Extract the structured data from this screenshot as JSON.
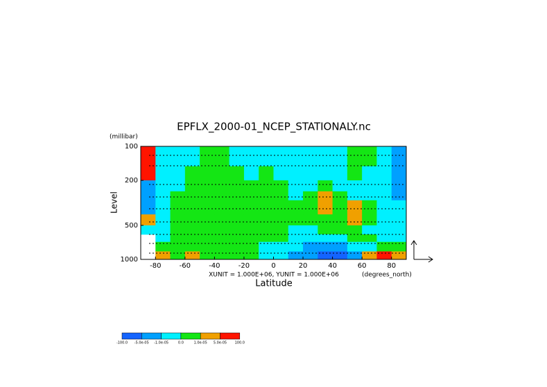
{
  "chart_data": {
    "type": "contour",
    "title": "EPFLX_2000-01_NCEP_STATIONALY.nc",
    "xlabel": "Latitude",
    "ylabel": "Level",
    "x_unit": "(degrees_north)",
    "y_unit": "(millibar)",
    "annotation": "XUNIT = 1.000E+06, YUNIT = 1.000E+06",
    "x": [
      -90,
      -80,
      -70,
      -60,
      -50,
      -40,
      -30,
      -20,
      -10,
      0,
      10,
      20,
      30,
      40,
      50,
      60,
      70,
      80,
      90
    ],
    "y": [
      100,
      150,
      200,
      250,
      300,
      400,
      500,
      600,
      700,
      850,
      1000
    ],
    "z": [
      [
        5,
        2,
        2,
        2,
        3,
        3,
        2,
        2,
        2,
        2,
        2,
        2,
        2,
        2,
        3,
        3,
        2,
        1
      ],
      [
        5,
        2,
        2,
        3,
        3,
        3,
        3,
        2,
        3,
        2,
        2,
        2,
        2,
        2,
        3,
        2,
        2,
        1
      ],
      [
        1,
        2,
        2,
        3,
        3,
        3,
        3,
        3,
        3,
        3,
        2,
        2,
        3,
        2,
        2,
        2,
        2,
        1
      ],
      [
        1,
        2,
        3,
        3,
        3,
        3,
        3,
        3,
        3,
        3,
        2,
        3,
        4,
        3,
        2,
        2,
        2,
        1
      ],
      [
        1,
        2,
        3,
        3,
        3,
        3,
        3,
        3,
        3,
        3,
        3,
        3,
        4,
        3,
        4,
        3,
        2,
        2
      ],
      [
        4,
        2,
        3,
        3,
        3,
        3,
        3,
        3,
        3,
        3,
        3,
        3,
        3,
        3,
        4,
        3,
        2,
        2
      ],
      [
        2,
        2,
        3,
        3,
        3,
        3,
        3,
        3,
        3,
        3,
        2,
        2,
        3,
        3,
        3,
        2,
        2,
        2
      ],
      [
        null,
        2,
        3,
        3,
        3,
        3,
        3,
        3,
        3,
        3,
        2,
        2,
        2,
        2,
        3,
        3,
        2,
        2
      ],
      [
        null,
        3,
        3,
        3,
        3,
        3,
        3,
        3,
        2,
        2,
        2,
        1,
        1,
        1,
        2,
        2,
        3,
        3
      ],
      [
        null,
        4,
        3,
        4,
        3,
        3,
        3,
        3,
        2,
        2,
        1,
        1,
        0,
        0,
        1,
        4,
        5,
        4
      ]
    ],
    "xlim": [
      -90,
      90
    ],
    "xticks": [
      -80,
      -60,
      -40,
      -20,
      0,
      20,
      40,
      60,
      80
    ],
    "ylim": [
      100,
      1000
    ],
    "yticks": [
      100,
      200,
      500,
      1000
    ],
    "y_scale": "log",
    "y_inverted": true,
    "colorbar": {
      "colors": [
        "#1464ff",
        "#00a0ff",
        "#00f0ff",
        "#14e614",
        "#f0a000",
        "#ff1400"
      ],
      "levels": [
        {
          "value": -100,
          "label": "-100.0"
        },
        {
          "value": -5e-05,
          "label": "-5.0e-05"
        },
        {
          "value": -1e-05,
          "label": "-1.0e-05"
        },
        {
          "value": 0,
          "label": "0.0"
        },
        {
          "value": 1e-05,
          "label": "1.0e-05"
        },
        {
          "value": 5e-05,
          "label": "5.0e-05"
        },
        {
          "value": 100,
          "label": "100.0"
        }
      ]
    }
  }
}
